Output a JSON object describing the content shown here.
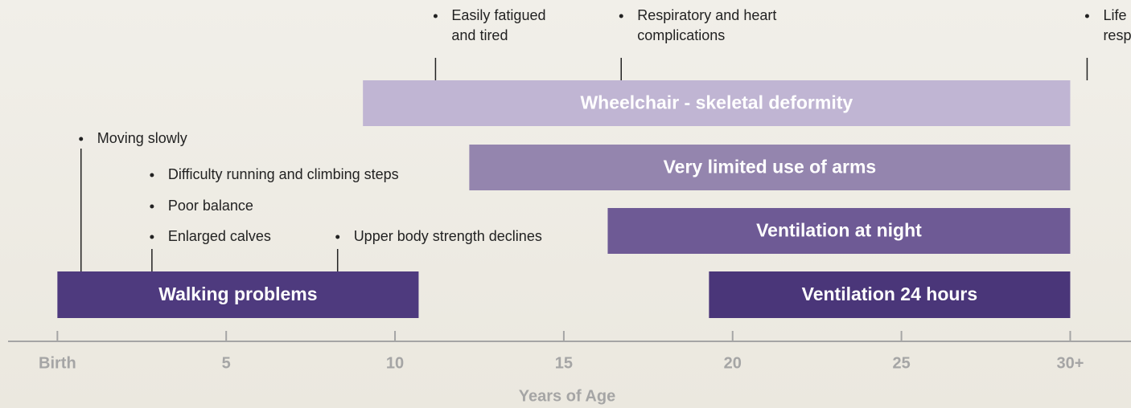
{
  "chart_data": {
    "type": "timeline",
    "x_label": "Years of Age",
    "xlim": [
      -1.7,
      31.8
    ],
    "xticks": [
      {
        "value": 0,
        "label": "Birth"
      },
      5,
      10,
      15,
      20,
      25,
      {
        "value": 30,
        "label": "30+"
      }
    ],
    "series": [
      {
        "name": "Walking problems",
        "color": "#4e3a7e",
        "start": 0,
        "end": 10.7
      },
      {
        "name": "Wheelchair - skeletal deformity",
        "color": "#c0b5d3",
        "start": 9.05,
        "end": 30
      },
      {
        "name": "Very limited use of arms",
        "color": "#9485ae",
        "start": 12.2,
        "end": 30
      },
      {
        "name": "Ventilation at night",
        "color": "#6e5a95",
        "start": 16.3,
        "end": 30
      },
      {
        "name": "Ventilation 24 hours",
        "color": "#4a3679",
        "start": 19.3,
        "end": 30
      }
    ],
    "annotations": [
      {
        "x": 11.2,
        "lines": [
          "Easily fatigued",
          "and tired"
        ]
      },
      {
        "x": 16.7,
        "lines": [
          "Respiratory and heart",
          "complications"
        ]
      },
      {
        "x": 30.5,
        "lines": [
          "Life limited due to",
          "respiratory or cardiac failure"
        ]
      },
      {
        "x": 0.7,
        "lines": [
          "Moving slowly"
        ]
      },
      {
        "x": 2.8,
        "lines": [
          "Difficulty running and climbing steps"
        ]
      },
      {
        "x": 2.8,
        "lines": [
          "Poor balance"
        ]
      },
      {
        "x": 2.8,
        "lines": [
          "Enlarged calves"
        ]
      },
      {
        "x": 8.3,
        "lines": [
          "Upper body strength declines"
        ]
      }
    ]
  }
}
